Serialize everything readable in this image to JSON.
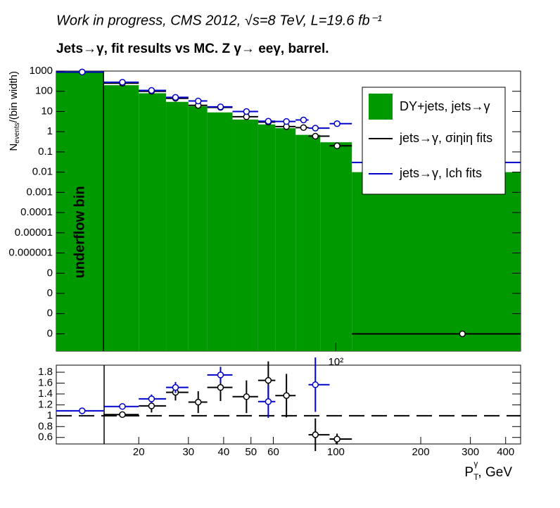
{
  "header": {
    "title": "Work in progress, CMS 2012,   √s=8 TeV, L=19.6 fb⁻¹",
    "subtitle": "Jets→γ, fit results vs MC.      Z  γ→ eeγ, barrel."
  },
  "chart_data": [
    {
      "type": "histogram",
      "ylabel": "N",
      "ylabel_sub": "events",
      "ylabel_rest": "/(bin width)",
      "annotation": "underflow bin",
      "log_x": true,
      "log_y": true,
      "legend": "top-right",
      "xlim": [
        10.2,
        452
      ],
      "ylim": [
        1.4e-11,
        1000
      ],
      "xticks": [
        {
          "value": 100,
          "label": "10²"
        }
      ],
      "yticks": [
        1000,
        100,
        10,
        1,
        0.1,
        0.01,
        0.001,
        0.0001,
        1e-05,
        1e-06,
        {
          "value": 1e-07,
          "label": "0"
        },
        {
          "value": 1e-08,
          "label": "0"
        },
        {
          "value": 1e-09,
          "label": "0"
        },
        {
          "value": 1e-10,
          "label": "0"
        }
      ],
      "histogram": {
        "name": "DY+jets, jets→γ",
        "color": "#009900",
        "bins": [
          10.2,
          15,
          20,
          25,
          30,
          35,
          43,
          53,
          61,
          72,
          88,
          114,
          452
        ],
        "counts": [
          1000,
          200,
          80,
          30,
          18,
          9,
          4,
          2.3,
          1.5,
          0.7,
          0.3,
          0.01
        ]
      },
      "series": [
        {
          "name": "jets→γ, σiηiη fits",
          "color": "#000000",
          "x": [
            12.6,
            17.5,
            22.2,
            27,
            32.5,
            39,
            48.2,
            57.6,
            66.8,
            76.8,
            84.6,
            101,
            281
          ],
          "xlow": [
            10.2,
            15,
            20,
            25,
            30,
            35,
            43,
            53,
            61,
            72,
            80,
            95,
            114
          ],
          "xhigh": [
            15,
            20,
            25,
            30,
            35,
            43,
            53,
            61,
            72,
            80,
            95,
            114,
            452
          ],
          "values": [
            900,
            250,
            100,
            45,
            20,
            16,
            5.5,
            3,
            1.8,
            1.6,
            0.6,
            0.2,
            1e-10
          ]
        },
        {
          "name": "jets→γ, Ich fits",
          "color": "#0000cc",
          "x": [
            12.6,
            17.5,
            22.2,
            27,
            32.5,
            39,
            48.2,
            57.6,
            66.8,
            76.8,
            84.6,
            101,
            227
          ],
          "xlow": [
            10.2,
            15,
            20,
            25,
            30,
            35,
            43,
            53,
            61,
            72,
            80,
            95,
            114
          ],
          "xhigh": [
            15,
            20,
            25,
            30,
            35,
            43,
            53,
            61,
            72,
            80,
            95,
            114,
            452
          ],
          "values": [
            900,
            280,
            110,
            50,
            33,
            17,
            10,
            3.3,
            3.2,
            3.8,
            1.5,
            2.5,
            0.03
          ]
        }
      ]
    },
    {
      "type": "ratio",
      "xlabel": "P",
      "xlabel_sub": "T",
      "xlabel_sup": "γ",
      "xlabel_rest": ", GeV",
      "log_x": true,
      "xlim": [
        10.2,
        452
      ],
      "ylim": [
        0.48,
        1.93
      ],
      "xticks": [
        20,
        30,
        40,
        50,
        60,
        100,
        200,
        300,
        400
      ],
      "yticks": [
        0.6,
        0.8,
        1,
        1.2,
        1.4,
        1.6,
        1.8
      ],
      "reference_line": 1,
      "series": [
        {
          "color": "#000000",
          "x": [
            17.5,
            22.2,
            27,
            32.5,
            39,
            48.2,
            57.6,
            66.8,
            84.6,
            101
          ],
          "xlow": [
            15,
            20,
            25,
            30,
            35,
            43,
            53,
            61,
            80,
            95
          ],
          "xhigh": [
            20,
            25,
            30,
            35,
            43,
            53,
            61,
            72,
            95,
            114
          ],
          "values": [
            1.02,
            1.18,
            1.43,
            1.25,
            1.52,
            1.35,
            1.65,
            1.37,
            0.65,
            0.57
          ],
          "yerr": [
            0.03,
            0.12,
            0.15,
            0.2,
            0.25,
            0.3,
            0.35,
            0.4,
            0.3,
            0.1
          ]
        },
        {
          "color": "#0000cc",
          "x": [
            12.6,
            17.5,
            22.2,
            27,
            39,
            57.6,
            84.6
          ],
          "xlow": [
            10.2,
            15,
            20,
            25,
            35,
            53,
            80
          ],
          "xhigh": [
            15,
            20,
            25,
            30,
            43,
            61,
            95
          ],
          "values": [
            1.09,
            1.17,
            1.31,
            1.52,
            1.75,
            1.26,
            1.57
          ],
          "yerr": [
            0.03,
            0.03,
            0.08,
            0.1,
            0.15,
            0.3,
            0.5
          ]
        }
      ]
    }
  ]
}
